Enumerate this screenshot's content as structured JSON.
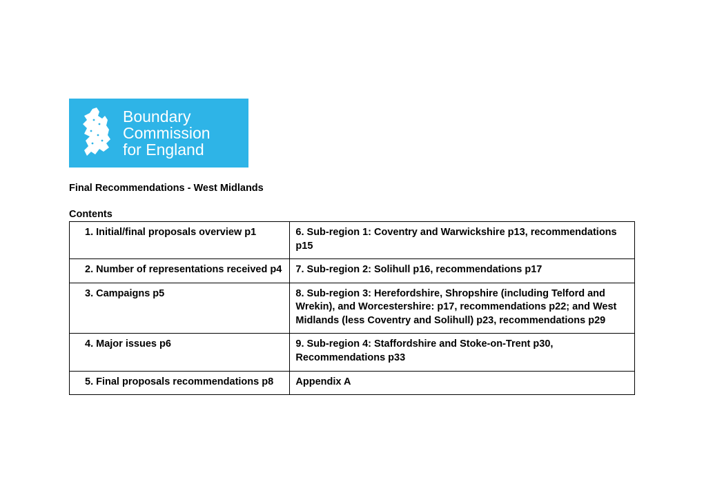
{
  "logo": {
    "background_color": "#2eb4e7",
    "text_color": "#ffffff",
    "line1": "Boundary",
    "line2": "Commission",
    "line3": "for England",
    "fontsize": 23
  },
  "title": "Final Recommendations - West Midlands",
  "contents_label": "Contents",
  "table": {
    "border_color": "#000000",
    "fontsize": 14.5,
    "col_widths_pct": [
      39,
      61
    ],
    "rows": [
      {
        "left": "1.  Initial/final proposals overview p1",
        "left_indent": true,
        "right": "6.  Sub-region 1: Coventry and Warwickshire p13, recommendations p15"
      },
      {
        "left": "2.  Number of representations received p4",
        "left_indent": true,
        "right": "7. Sub-region 2: Solihull p16, recommendations p17"
      },
      {
        "left": "3.  Campaigns p5",
        "left_indent": true,
        "right": "8. Sub-region 3: Herefordshire, Shropshire (including Telford and Wrekin), and Worcestershire: p17, recommendations p22; and West Midlands (less Coventry and Solihull) p23, recommendations p29"
      },
      {
        "left": "4.  Major issues p6",
        "left_indent": true,
        "right": "9. Sub-region 4: Staffordshire and Stoke-on-Trent p30, Recommendations p33",
        "tall": true
      },
      {
        "left": "5.  Final proposals recommendations p8",
        "left_indent": true,
        "right": "Appendix A"
      }
    ]
  }
}
